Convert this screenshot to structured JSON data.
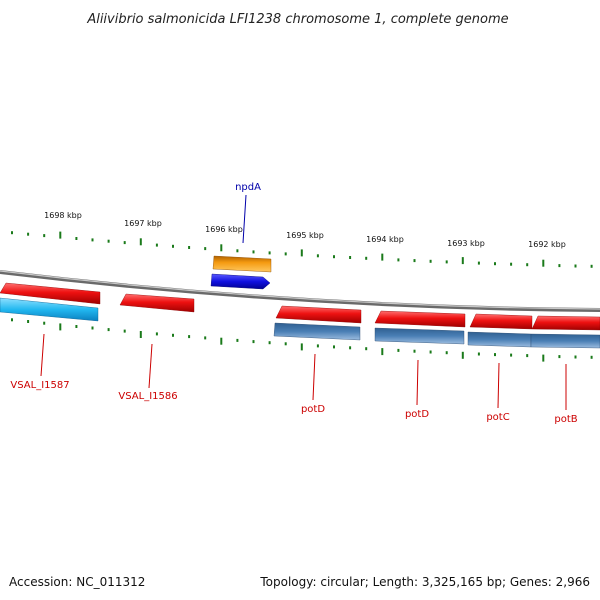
{
  "title": "Aliivibrio salmonicida LFI1238 chromosome 1, complete genome",
  "footer": {
    "accession": "Accession: NC_011312",
    "summary": "Topology: circular; Length: 3,325,165 bp; Genes: 2,966"
  },
  "colors": {
    "backbone": "#8a8a8a",
    "tick": "#1a7a1a",
    "forward_gene": "#ee1111",
    "reverse_cds_light": "#22b8f0",
    "reverse_cds": "#4a7fb5",
    "orange_feature": "#f59a10",
    "blue_feature": "#1010e0",
    "label_red": "#cc0000",
    "label_blue": "#0000aa"
  },
  "ticks": [
    {
      "label": "1698 kbp",
      "kbp": 1698
    },
    {
      "label": "1697 kbp",
      "kbp": 1697
    },
    {
      "label": "1696 kbp",
      "kbp": 1696
    },
    {
      "label": "1695 kbp",
      "kbp": 1695
    },
    {
      "label": "1694 kbp",
      "kbp": 1694
    },
    {
      "label": "1693 kbp",
      "kbp": 1693
    },
    {
      "label": "1692 kbp",
      "kbp": 1692
    }
  ],
  "gene_labels": [
    {
      "label": "npdA",
      "color": "label_blue"
    },
    {
      "label": "VSAL_I1587",
      "color": "label_red"
    },
    {
      "label": "VSAL_I1586",
      "color": "label_red"
    },
    {
      "label": "potD",
      "color": "label_red"
    },
    {
      "label": "potD",
      "color": "label_red"
    },
    {
      "label": "potC",
      "color": "label_red"
    },
    {
      "label": "potB",
      "color": "label_red"
    }
  ]
}
